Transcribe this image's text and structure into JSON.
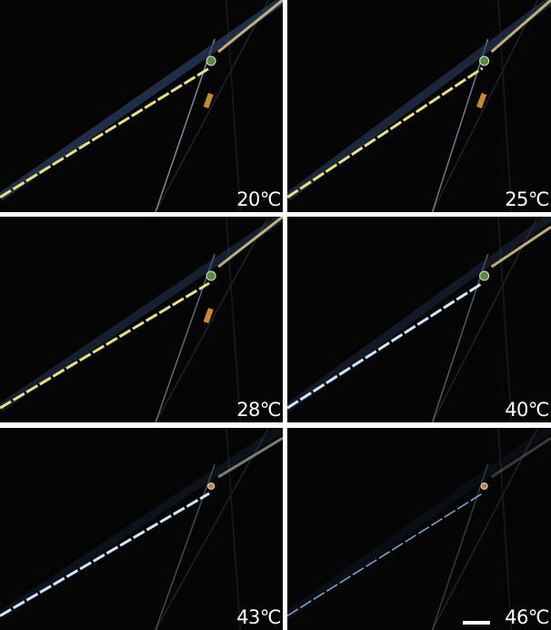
{
  "panels": [
    {
      "label": "20℃"
    },
    {
      "label": "25℃"
    },
    {
      "label": "28℃"
    },
    {
      "label": "40℃"
    },
    {
      "label": "43℃"
    },
    {
      "label": "46℃"
    }
  ]
}
